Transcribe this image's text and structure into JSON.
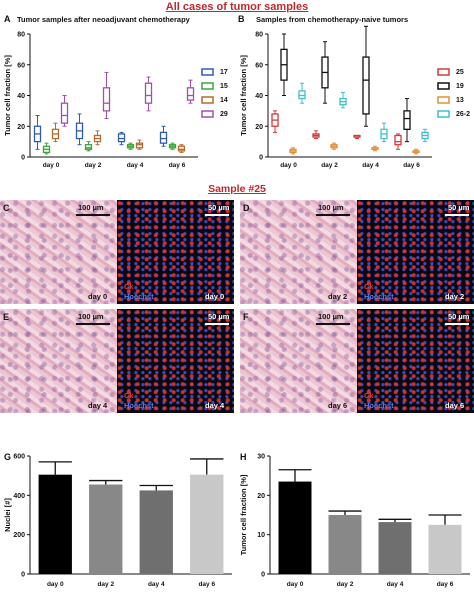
{
  "figure": {
    "main_title": "All cases of tumor samples",
    "sample_title": "Sample #25"
  },
  "panels": {
    "A": {
      "letter": "A",
      "title": "Tumor samples after neoadjuvant chemotherapy"
    },
    "B": {
      "letter": "B",
      "title": "Samples from chemotherapy-naive tumors"
    },
    "C": {
      "letter": "C",
      "scale_left": "100 µm",
      "scale_right": "50 µm",
      "day_left": "day 0",
      "day_right": "day 0",
      "ck": "Ck",
      "hoechst": "Hoechst"
    },
    "D": {
      "letter": "D",
      "scale_left": "100 µm",
      "scale_right": "50 µm",
      "day_left": "day 2",
      "day_right": "day 2",
      "ck": "Ck",
      "hoechst": "Hoechst"
    },
    "E": {
      "letter": "E",
      "scale_left": "100 µm",
      "scale_right": "50 µm",
      "day_left": "day 4",
      "day_right": "day 4",
      "ck": "Ck",
      "hoechst": "Hoechst"
    },
    "F": {
      "letter": "F",
      "scale_left": "100 µm",
      "scale_right": "50 µm",
      "day_left": "day 6",
      "day_right": "day 6",
      "ck": "Ck",
      "hoechst": "Hoechst"
    },
    "G": {
      "letter": "G"
    },
    "H": {
      "letter": "H"
    }
  },
  "chart_data": [
    {
      "id": "A",
      "type": "box",
      "title": "Tumor samples after neoadjuvant chemotherapy",
      "ylabel": "Tumor cell fraction [%]",
      "ylim": [
        0,
        80
      ],
      "yticks": [
        "0",
        "20",
        "40",
        "60",
        "80"
      ],
      "categories": [
        "day 0",
        "day 2",
        "day 4",
        "day 6"
      ],
      "legend_position": "right",
      "series": [
        {
          "name": "17",
          "color": "#2f5bb7",
          "boxes": [
            [
              5,
              10,
              15,
              20,
              27
            ],
            [
              8,
              12,
              17,
              22,
              28
            ],
            [
              8,
              10,
              12,
              15,
              16
            ],
            [
              7,
              9,
              12,
              16,
              20
            ]
          ]
        },
        {
          "name": "15",
          "color": "#3aa63a",
          "boxes": [
            [
              2,
              3,
              5,
              7,
              9
            ],
            [
              4,
              5,
              6,
              8,
              10
            ],
            [
              5,
              6,
              7,
              8,
              9
            ],
            [
              5,
              6,
              7,
              8,
              9
            ]
          ]
        },
        {
          "name": "14",
          "color": "#b86a2a",
          "boxes": [
            [
              10,
              12,
              15,
              18,
              22
            ],
            [
              8,
              10,
              12,
              14,
              17
            ],
            [
              5,
              6,
              8,
              9,
              11
            ],
            [
              3,
              4,
              5,
              7,
              8
            ]
          ]
        },
        {
          "name": "29",
          "color": "#a050a8",
          "boxes": [
            [
              20,
              22,
              27,
              35,
              40
            ],
            [
              25,
              30,
              35,
              45,
              55
            ],
            [
              30,
              35,
              40,
              48,
              52
            ],
            [
              35,
              37,
              40,
              45,
              50
            ]
          ]
        }
      ]
    },
    {
      "id": "B",
      "type": "box",
      "title": "Samples from chemotherapy-naive tumors",
      "ylabel": "Tumor cell fraction [%]",
      "ylim": [
        0,
        80
      ],
      "yticks": [
        "0",
        "20",
        "40",
        "60",
        "80"
      ],
      "categories": [
        "day 0",
        "day 2",
        "day 4",
        "day 6"
      ],
      "legend_position": "right",
      "series": [
        {
          "name": "25",
          "color": "#d63a3a",
          "boxes": [
            [
              16,
              20,
              24,
              28,
              30
            ],
            [
              12,
              13,
              14,
              15,
              17
            ],
            [
              12,
              13,
              13,
              14,
              14
            ],
            [
              5,
              8,
              10,
              14,
              15
            ]
          ]
        },
        {
          "name": "19",
          "color": "#111111",
          "boxes": [
            [
              40,
              50,
              60,
              70,
              80
            ],
            [
              35,
              45,
              55,
              65,
              75
            ],
            [
              20,
              28,
              50,
              65,
              85
            ],
            [
              10,
              18,
              25,
              30,
              38
            ]
          ]
        },
        {
          "name": "13",
          "color": "#e0903a",
          "boxes": [
            [
              2,
              3,
              4,
              5,
              6
            ],
            [
              5,
              6,
              7,
              8,
              9
            ],
            [
              4,
              5,
              5,
              6,
              7
            ],
            [
              2,
              3,
              3,
              4,
              5
            ]
          ]
        },
        {
          "name": "26-2",
          "color": "#3fbfc8",
          "boxes": [
            [
              35,
              38,
              40,
              43,
              48
            ],
            [
              32,
              34,
              36,
              38,
              42
            ],
            [
              10,
              12,
              15,
              18,
              22
            ],
            [
              10,
              12,
              14,
              16,
              18
            ]
          ]
        }
      ]
    },
    {
      "id": "G",
      "type": "bar",
      "ylabel": "Nuclei [#]",
      "ylim": [
        0,
        600
      ],
      "yticks": [
        "0",
        "200",
        "400",
        "600"
      ],
      "categories": [
        "day 0",
        "day 2",
        "day 4",
        "day 6"
      ],
      "values": [
        505,
        455,
        425,
        505
      ],
      "errors": [
        65,
        20,
        25,
        80
      ],
      "colors": [
        "#000000",
        "#888888",
        "#6f6f6f",
        "#c8c8c8"
      ]
    },
    {
      "id": "H",
      "type": "bar",
      "ylabel": "Tumor cell fraction [%]",
      "ylim": [
        0,
        30
      ],
      "yticks": [
        "0",
        "10",
        "20",
        "30"
      ],
      "categories": [
        "day 0",
        "day 2",
        "day 4",
        "day 6"
      ],
      "values": [
        23.5,
        15,
        13.2,
        12.5
      ],
      "errors": [
        3,
        1,
        0.7,
        2.5
      ],
      "colors": [
        "#000000",
        "#888888",
        "#6f6f6f",
        "#c8c8c8"
      ]
    }
  ]
}
